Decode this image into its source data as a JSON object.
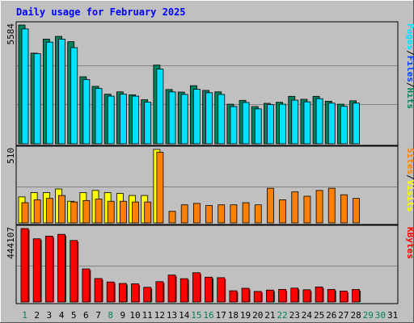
{
  "chart_data": {
    "type": "bar",
    "title": "Daily usage for February 2025",
    "categories": [
      "1",
      "2",
      "3",
      "4",
      "5",
      "6",
      "7",
      "8",
      "9",
      "10",
      "11",
      "12",
      "13",
      "14",
      "15",
      "16",
      "17",
      "18",
      "19",
      "20",
      "21",
      "22",
      "23",
      "24",
      "25",
      "26",
      "27",
      "28",
      "29",
      "30",
      "31"
    ],
    "weekend_days": [
      "1",
      "8",
      "15",
      "16",
      "22",
      "29",
      "30"
    ],
    "colors": {
      "hits": "#00805c",
      "files": "#0040ff",
      "pages": "#00e0ff",
      "visits": "#ffff00",
      "sites": "#ff8000",
      "kbytes": "#ff0000",
      "weekday_label": "#000000",
      "weekend_label": "#00805c",
      "title": "#0000ff"
    },
    "panels": [
      {
        "name": "hits-files-pages",
        "max_label": "5584",
        "max": 5584,
        "legend": [
          {
            "text": "Hits",
            "color": "#00805c"
          },
          {
            "text": "/",
            "color": "#000000"
          },
          {
            "text": "Files",
            "color": "#0040ff"
          },
          {
            "text": "/",
            "color": "#000000"
          },
          {
            "text": "Pages",
            "color": "#00e0ff"
          }
        ],
        "series": [
          {
            "name": "Hits",
            "color": "#00805c",
            "values": [
              5584,
              4260,
              4920,
              5050,
              4800,
              3150,
              2700,
              2330,
              2440,
              2300,
              2070,
              3700,
              2550,
              2430,
              2730,
              2510,
              2440,
              1860,
              2040,
              1750,
              1900,
              1950,
              2230,
              2090,
              2230,
              2000,
              1860,
              2020,
              0,
              0,
              0
            ]
          },
          {
            "name": "Pages",
            "color": "#00e0ff",
            "values": [
              5400,
              4240,
              4780,
              4920,
              4520,
              3020,
              2600,
              2240,
              2330,
              2240,
              1960,
              3510,
              2440,
              2320,
              2560,
              2400,
              2320,
              1750,
              1940,
              1640,
              1840,
              1860,
              2050,
              1970,
              2120,
              1910,
              1760,
              1910,
              0,
              0,
              0
            ]
          }
        ]
      },
      {
        "name": "visits-sites",
        "max_label": "510",
        "max": 510,
        "legend": [
          {
            "text": "Visits",
            "color": "#ffff00"
          },
          {
            "text": "/",
            "color": "#000000"
          },
          {
            "text": "Sites",
            "color": "#ff8000"
          }
        ],
        "series": [
          {
            "name": "Visits",
            "color": "#ffff00",
            "values": [
              180,
              210,
              210,
              235,
              150,
              210,
              225,
              210,
              205,
              190,
              190,
              510,
              0,
              0,
              0,
              0,
              0,
              0,
              0,
              0,
              0,
              0,
              0,
              0,
              0,
              0,
              0,
              0,
              0,
              0,
              0
            ]
          },
          {
            "name": "Sites",
            "color": "#ff8000",
            "values": [
              140,
              160,
              170,
              190,
              145,
              155,
              165,
              150,
              150,
              145,
              145,
              490,
              80,
              125,
              135,
              120,
              125,
              125,
              140,
              125,
              240,
              160,
              215,
              185,
              225,
              240,
              195,
              170,
              0,
              0,
              0
            ]
          }
        ]
      },
      {
        "name": "kbytes",
        "max_label": "444107",
        "max": 444107,
        "legend": [
          {
            "text": "KBytes",
            "color": "#ff0000"
          }
        ],
        "series": [
          {
            "name": "KBytes",
            "color": "#ff0000",
            "values": [
              444107,
              382000,
              398000,
              409000,
              372000,
              200000,
              142000,
              121000,
              112000,
              110000,
              89000,
              123000,
              163000,
              141000,
              177000,
              150000,
              147000,
              68000,
              83000,
              64000,
              72000,
              76000,
              84000,
              74000,
              91000,
              76000,
              66000,
              76000,
              0,
              0,
              0
            ]
          }
        ]
      }
    ]
  }
}
